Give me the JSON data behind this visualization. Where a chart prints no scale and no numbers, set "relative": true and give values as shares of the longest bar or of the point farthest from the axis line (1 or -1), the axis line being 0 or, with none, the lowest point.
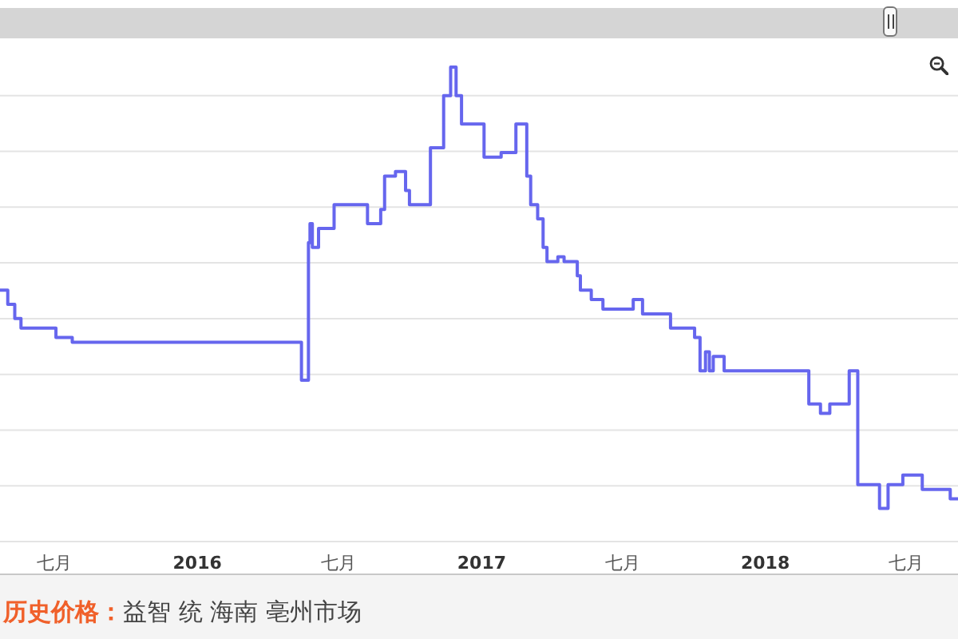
{
  "chart_data": {
    "type": "step",
    "relative": true,
    "color": "#6666ee",
    "grid": "y",
    "x": [
      "2015-04-22",
      "2015-05-02",
      "2015-05-11",
      "2015-05-19",
      "2015-07-03",
      "2015-07-24",
      "2016-05-14",
      "2016-05-23",
      "2016-05-25",
      "2016-05-28",
      "2016-06-05",
      "2016-06-25",
      "2016-08-07",
      "2016-08-24",
      "2016-08-29",
      "2016-09-12",
      "2016-09-25",
      "2016-09-30",
      "2016-10-27",
      "2016-11-13",
      "2016-11-22",
      "2016-11-29",
      "2016-12-06",
      "2017-01-04",
      "2017-01-26",
      "2017-02-14",
      "2017-02-28",
      "2017-03-05",
      "2017-03-14",
      "2017-03-21",
      "2017-03-26",
      "2017-04-09",
      "2017-04-17",
      "2017-05-04",
      "2017-05-08",
      "2017-05-22",
      "2017-06-06",
      "2017-07-15",
      "2017-07-27",
      "2017-09-01",
      "2017-10-02",
      "2017-10-09",
      "2017-10-16",
      "2017-10-21",
      "2017-10-26",
      "2017-11-09",
      "2018-02-26",
      "2018-03-13",
      "2018-03-25",
      "2018-04-19",
      "2018-04-30",
      "2018-05-28",
      "2018-06-08",
      "2018-06-27",
      "2018-07-22",
      "2018-08-27",
      "2018-09-06"
    ],
    "values": [
      0.53,
      0.5,
      0.47,
      0.45,
      0.43,
      0.42,
      0.34,
      0.63,
      0.67,
      0.62,
      0.66,
      0.71,
      0.67,
      0.7,
      0.77,
      0.78,
      0.74,
      0.71,
      0.83,
      0.94,
      1,
      0.94,
      0.88,
      0.81,
      0.82,
      0.88,
      0.77,
      0.71,
      0.68,
      0.62,
      0.59,
      0.6,
      0.59,
      0.56,
      0.53,
      0.51,
      0.49,
      0.51,
      0.48,
      0.45,
      0.43,
      0.36,
      0.4,
      0.36,
      0.39,
      0.36,
      0.29,
      0.27,
      0.29,
      0.36,
      0.12,
      0.07,
      0.12,
      0.14,
      0.11,
      0.09,
      0.09
    ],
    "xlim": [
      "2015-04-22",
      "2018-09-06"
    ],
    "xticks": [
      {
        "value": "2015-07-01",
        "label": "七月"
      },
      {
        "value": "2016-01-01",
        "label": "2016"
      },
      {
        "value": "2016-07-01",
        "label": "七月"
      },
      {
        "value": "2017-01-01",
        "label": "2017"
      },
      {
        "value": "2017-07-01",
        "label": "七月"
      },
      {
        "value": "2018-01-01",
        "label": "2018"
      },
      {
        "value": "2018-07-01",
        "label": "七月"
      }
    ],
    "annotations": [
      "历史价格：",
      "益智 统 海南 亳州市场"
    ]
  }
}
